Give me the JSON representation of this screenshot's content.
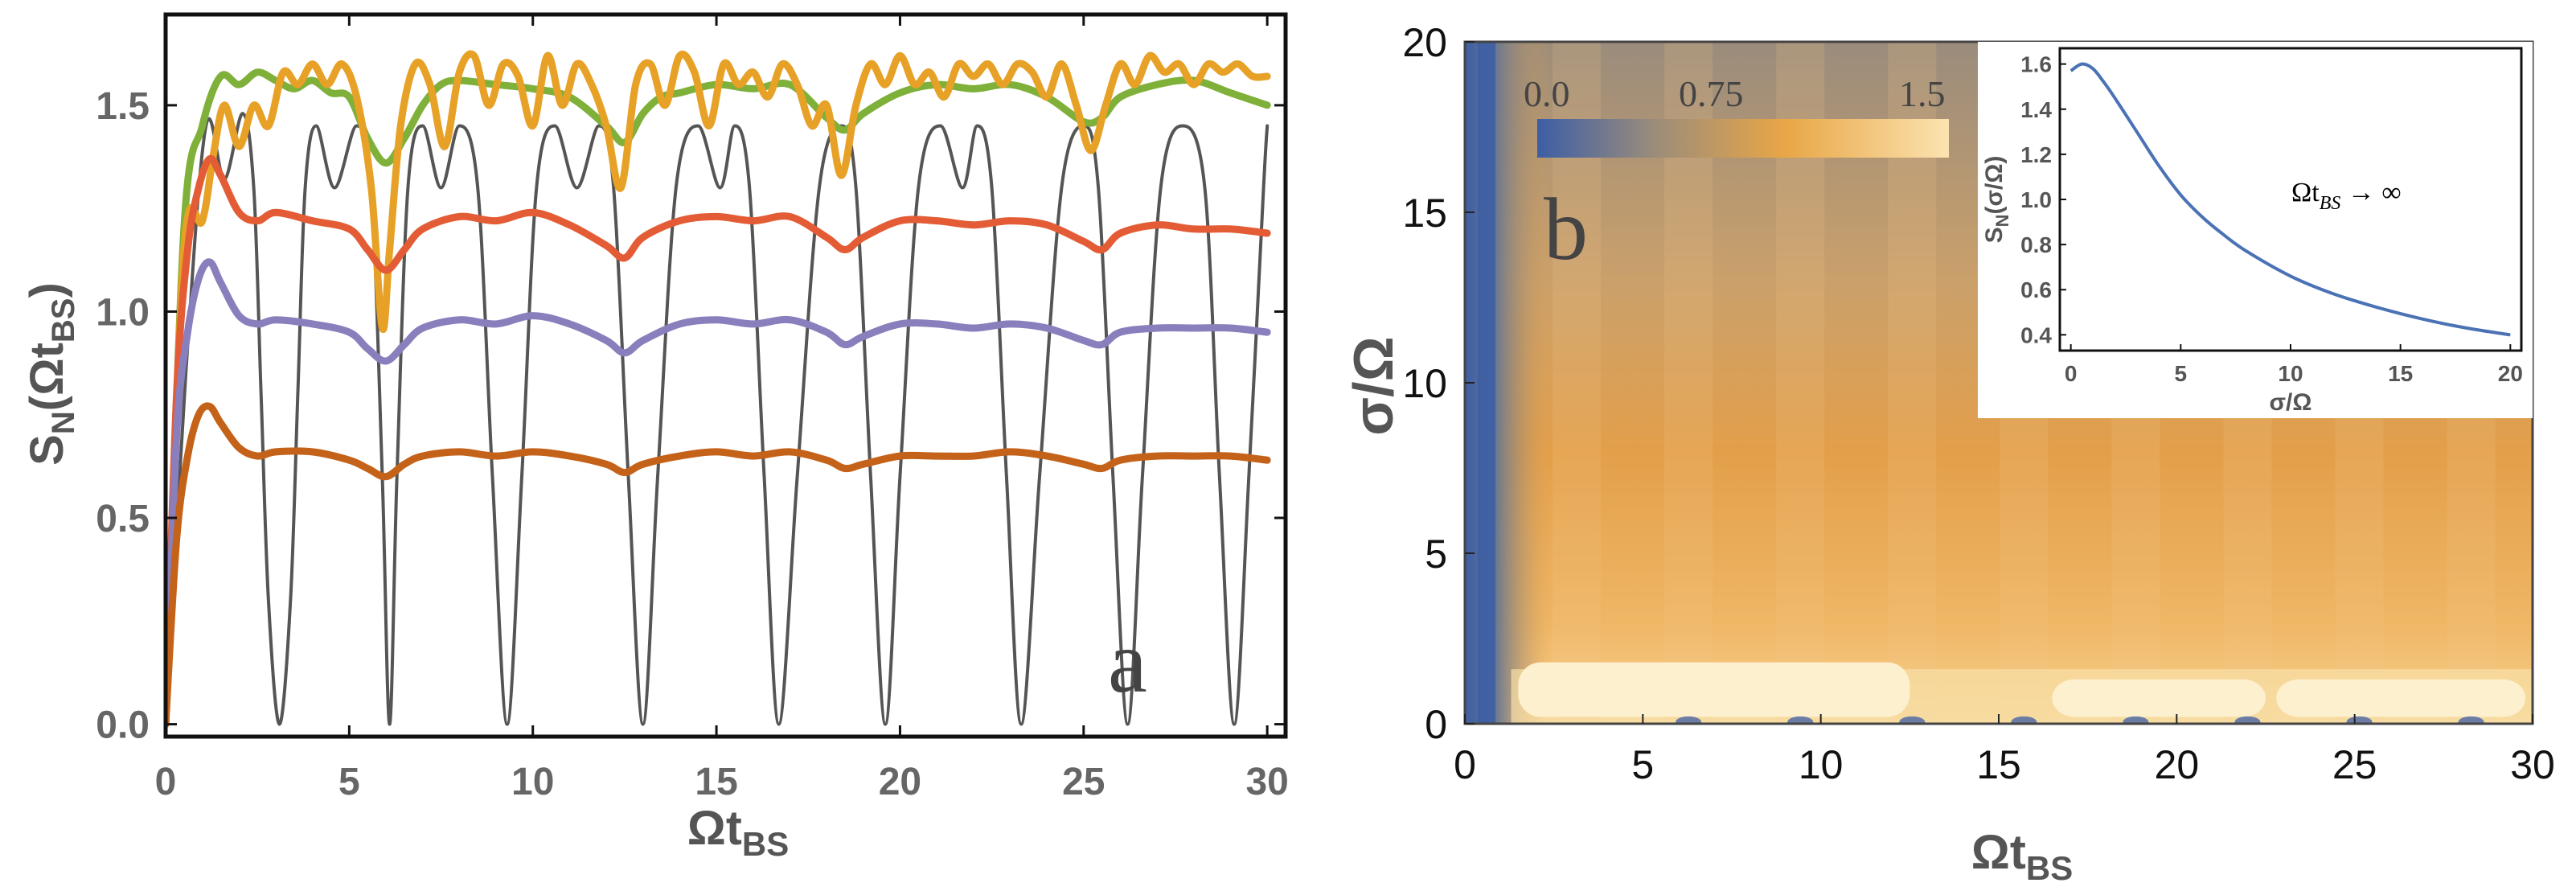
{
  "chart_data": [
    {
      "type": "line",
      "panel_label": "a",
      "xlabel": "Ωt",
      "xlabel_sub": "BS",
      "ylabel": "S",
      "ylabel_sub": "N",
      "ylabel_arg": "(Ωt",
      "ylabel_arg_sub": "BS",
      "ylabel_close": ")",
      "xlim": [
        0,
        30.5
      ],
      "ylim": [
        -0.03,
        1.72
      ],
      "xticks": [
        "0",
        "5",
        "10",
        "15",
        "20",
        "25",
        "30"
      ],
      "yticks": [
        "0.0",
        "0.5",
        "1.0",
        "1.5"
      ],
      "series": [
        {
          "name": "oscillating",
          "color": "#555555",
          "x": [
            0,
            0.55,
            1.1,
            1.6,
            2.1,
            2.4,
            2.6,
            2.8,
            3.1,
            3.4,
            3.6,
            3.8,
            4.1,
            4.6,
            5.2,
            5.6,
            5.9,
            6.1,
            6.3,
            6.6,
            7.0,
            7.5,
            8.0,
            8.5,
            8.9,
            9.3,
            9.7,
            10.1,
            10.6,
            11.2,
            11.8,
            12.2,
            12.6,
            13.0,
            13.4,
            13.9,
            14.5,
            15.1,
            15.5,
            15.9,
            16.3,
            16.7,
            17.2,
            17.8,
            18.4,
            18.8,
            19.2,
            19.6,
            20.0,
            20.5,
            21.1,
            21.7,
            22.1,
            22.5,
            22.9,
            23.3,
            23.8,
            24.4,
            25.0,
            25.4,
            25.8,
            26.2,
            26.6,
            27.1,
            27.7,
            28.3,
            28.7,
            29.1,
            29.5,
            29.9,
            30.0
          ],
          "y": [
            0.0,
            0.85,
            1.45,
            1.32,
            1.48,
            1.3,
            0.8,
            0.3,
            0.0,
            0.3,
            0.8,
            1.3,
            1.45,
            1.3,
            1.45,
            1.3,
            0.6,
            0.0,
            0.6,
            1.3,
            1.45,
            1.3,
            1.45,
            1.3,
            0.6,
            0.0,
            0.6,
            1.3,
            1.45,
            1.3,
            1.45,
            1.3,
            0.6,
            0.0,
            0.6,
            1.3,
            1.45,
            1.3,
            1.45,
            1.3,
            0.6,
            0.0,
            0.6,
            1.3,
            1.45,
            1.3,
            0.6,
            0.0,
            0.6,
            1.3,
            1.45,
            1.3,
            1.45,
            1.3,
            0.6,
            0.0,
            0.6,
            1.3,
            1.45,
            1.3,
            0.6,
            0.0,
            0.6,
            1.3,
            1.45,
            1.3,
            0.6,
            0.0,
            0.6,
            1.3,
            1.45
          ]
        },
        {
          "name": "green",
          "color": "#7fb03a",
          "x": [
            0,
            0.5,
            1.0,
            1.5,
            2.0,
            2.5,
            3.0,
            3.5,
            4.0,
            4.5,
            5.0,
            5.5,
            6.0,
            6.5,
            7.0,
            7.5,
            8.0,
            9.0,
            10.0,
            11.0,
            12.0,
            12.5,
            13.0,
            13.5,
            14.0,
            15.0,
            16.0,
            17.0,
            18.0,
            18.5,
            19.0,
            20.0,
            21.0,
            22.0,
            23.0,
            24.0,
            25.0,
            25.5,
            26.0,
            27.0,
            28.0,
            29.0,
            30.0
          ],
          "y": [
            0.0,
            1.2,
            1.45,
            1.57,
            1.55,
            1.58,
            1.56,
            1.54,
            1.56,
            1.53,
            1.52,
            1.42,
            1.36,
            1.42,
            1.5,
            1.55,
            1.56,
            1.55,
            1.54,
            1.52,
            1.45,
            1.41,
            1.48,
            1.52,
            1.53,
            1.55,
            1.54,
            1.55,
            1.47,
            1.44,
            1.48,
            1.53,
            1.55,
            1.54,
            1.55,
            1.52,
            1.46,
            1.47,
            1.52,
            1.55,
            1.56,
            1.53,
            1.5
          ]
        },
        {
          "name": "yellow",
          "color": "#e6a126",
          "x": [
            0,
            0.5,
            1.0,
            1.3,
            1.6,
            2.0,
            2.4,
            2.8,
            3.2,
            3.6,
            4.0,
            4.4,
            4.8,
            5.2,
            5.6,
            5.9,
            6.1,
            6.4,
            6.8,
            7.2,
            7.6,
            8.0,
            8.4,
            8.8,
            9.2,
            9.6,
            10.0,
            10.4,
            10.8,
            11.2,
            11.6,
            12.0,
            12.4,
            12.8,
            13.2,
            13.6,
            14.0,
            14.4,
            14.8,
            15.2,
            15.6,
            16.0,
            16.4,
            16.8,
            17.2,
            17.6,
            18.0,
            18.4,
            18.8,
            19.2,
            19.6,
            20.0,
            20.4,
            20.8,
            21.2,
            21.6,
            22.0,
            22.4,
            22.8,
            23.2,
            23.6,
            24.0,
            24.4,
            24.8,
            25.2,
            25.6,
            26.0,
            26.4,
            26.8,
            27.2,
            27.6,
            28.0,
            28.4,
            28.8,
            29.2,
            29.6,
            30.0
          ],
          "y": [
            0.0,
            1.15,
            1.22,
            1.38,
            1.5,
            1.4,
            1.5,
            1.45,
            1.58,
            1.55,
            1.6,
            1.55,
            1.6,
            1.52,
            1.3,
            0.96,
            1.15,
            1.45,
            1.6,
            1.55,
            1.4,
            1.58,
            1.62,
            1.5,
            1.6,
            1.57,
            1.45,
            1.62,
            1.5,
            1.6,
            1.55,
            1.45,
            1.3,
            1.55,
            1.6,
            1.5,
            1.62,
            1.58,
            1.45,
            1.6,
            1.55,
            1.58,
            1.52,
            1.6,
            1.55,
            1.45,
            1.5,
            1.33,
            1.5,
            1.6,
            1.55,
            1.62,
            1.55,
            1.58,
            1.52,
            1.6,
            1.57,
            1.6,
            1.55,
            1.6,
            1.58,
            1.52,
            1.6,
            1.5,
            1.39,
            1.5,
            1.6,
            1.55,
            1.62,
            1.58,
            1.6,
            1.55,
            1.6,
            1.58,
            1.6,
            1.57,
            1.57
          ]
        },
        {
          "name": "red",
          "color": "#e35c35",
          "x": [
            0,
            0.3,
            0.6,
            0.9,
            1.2,
            1.5,
            2.0,
            2.5,
            3.0,
            4.0,
            5.0,
            5.5,
            6.0,
            6.5,
            7.0,
            8.0,
            9.0,
            10.0,
            11.0,
            12.0,
            12.5,
            13.0,
            14.0,
            15.0,
            16.0,
            17.0,
            18.0,
            18.5,
            19.0,
            20.0,
            21.0,
            22.0,
            23.0,
            24.0,
            25.0,
            25.5,
            26.0,
            27.0,
            28.0,
            29.0,
            30.0
          ],
          "y": [
            0.0,
            0.8,
            1.15,
            1.3,
            1.37,
            1.33,
            1.24,
            1.22,
            1.24,
            1.22,
            1.2,
            1.15,
            1.1,
            1.15,
            1.2,
            1.23,
            1.22,
            1.24,
            1.21,
            1.16,
            1.13,
            1.18,
            1.22,
            1.23,
            1.22,
            1.23,
            1.18,
            1.15,
            1.18,
            1.22,
            1.22,
            1.21,
            1.22,
            1.21,
            1.17,
            1.15,
            1.19,
            1.21,
            1.2,
            1.2,
            1.19
          ]
        },
        {
          "name": "purple",
          "color": "#8a7fbd",
          "x": [
            0,
            0.3,
            0.6,
            0.9,
            1.2,
            1.5,
            2.0,
            2.5,
            3.0,
            4.0,
            5.0,
            5.5,
            6.0,
            6.5,
            7.0,
            8.0,
            9.0,
            10.0,
            11.0,
            12.0,
            12.5,
            13.0,
            14.0,
            15.0,
            16.0,
            17.0,
            18.0,
            18.5,
            19.0,
            20.0,
            21.0,
            22.0,
            23.0,
            24.0,
            25.0,
            25.5,
            26.0,
            27.0,
            28.0,
            29.0,
            30.0
          ],
          "y": [
            0.0,
            0.7,
            0.95,
            1.08,
            1.12,
            1.07,
            0.99,
            0.97,
            0.98,
            0.97,
            0.95,
            0.91,
            0.88,
            0.92,
            0.96,
            0.98,
            0.97,
            0.99,
            0.97,
            0.93,
            0.9,
            0.93,
            0.97,
            0.98,
            0.97,
            0.98,
            0.95,
            0.92,
            0.94,
            0.97,
            0.97,
            0.96,
            0.97,
            0.96,
            0.93,
            0.92,
            0.95,
            0.96,
            0.96,
            0.96,
            0.95
          ]
        },
        {
          "name": "brown",
          "color": "#c4621a",
          "x": [
            0,
            0.3,
            0.6,
            0.9,
            1.2,
            1.5,
            2.0,
            2.5,
            3.0,
            4.0,
            5.0,
            5.5,
            6.0,
            6.5,
            7.0,
            8.0,
            9.0,
            10.0,
            11.0,
            12.0,
            12.5,
            13.0,
            14.0,
            15.0,
            16.0,
            17.0,
            18.0,
            18.5,
            19.0,
            20.0,
            21.0,
            22.0,
            23.0,
            24.0,
            25.0,
            25.5,
            26.0,
            27.0,
            28.0,
            29.0,
            30.0
          ],
          "y": [
            0.0,
            0.45,
            0.65,
            0.75,
            0.77,
            0.73,
            0.67,
            0.65,
            0.66,
            0.66,
            0.64,
            0.62,
            0.6,
            0.63,
            0.65,
            0.66,
            0.65,
            0.66,
            0.65,
            0.63,
            0.61,
            0.63,
            0.65,
            0.66,
            0.65,
            0.66,
            0.64,
            0.62,
            0.63,
            0.65,
            0.65,
            0.65,
            0.66,
            0.65,
            0.63,
            0.62,
            0.64,
            0.65,
            0.65,
            0.65,
            0.64
          ]
        }
      ]
    },
    {
      "type": "heatmap",
      "panel_label": "b",
      "xlabel": "Ωt",
      "xlabel_sub": "BS",
      "ylabel": "σ/Ω",
      "xlim": [
        0,
        30
      ],
      "ylim": [
        0,
        20
      ],
      "xticks": [
        "0",
        "5",
        "10",
        "15",
        "20",
        "25",
        "30"
      ],
      "yticks": [
        "0",
        "5",
        "10",
        "15",
        "20"
      ],
      "colorbar": {
        "range": [
          0.0,
          1.5
        ],
        "ticks": [
          "0.0",
          "0.75",
          "1.5"
        ],
        "colors": [
          "#3c5ea5",
          "#9a8c7b",
          "#e8a646",
          "#fbe3b0"
        ]
      },
      "inset": {
        "type": "line",
        "xlabel": "σ/Ω",
        "ylabel": "S",
        "ylabel_sub": "N",
        "ylabel_arg": "(σ/Ω)",
        "annotation": "Ωt",
        "annotation_sub": "BS",
        "annotation_tail": " → ∞",
        "xlim": [
          -0.5,
          20.5
        ],
        "ylim": [
          0.33,
          1.67
        ],
        "xticks": [
          "0",
          "5",
          "10",
          "15",
          "20"
        ],
        "yticks": [
          "0.4",
          "0.6",
          "0.8",
          "1.0",
          "1.2",
          "1.4",
          "1.6"
        ],
        "color": "#4a72b5",
        "x": [
          0,
          0.5,
          1,
          1.5,
          2,
          3,
          4,
          5,
          6,
          7,
          8,
          10,
          12,
          14,
          16,
          18,
          20
        ],
        "y": [
          1.57,
          1.6,
          1.58,
          1.52,
          1.45,
          1.3,
          1.15,
          1.02,
          0.92,
          0.84,
          0.77,
          0.66,
          0.58,
          0.52,
          0.47,
          0.43,
          0.4
        ]
      }
    }
  ]
}
